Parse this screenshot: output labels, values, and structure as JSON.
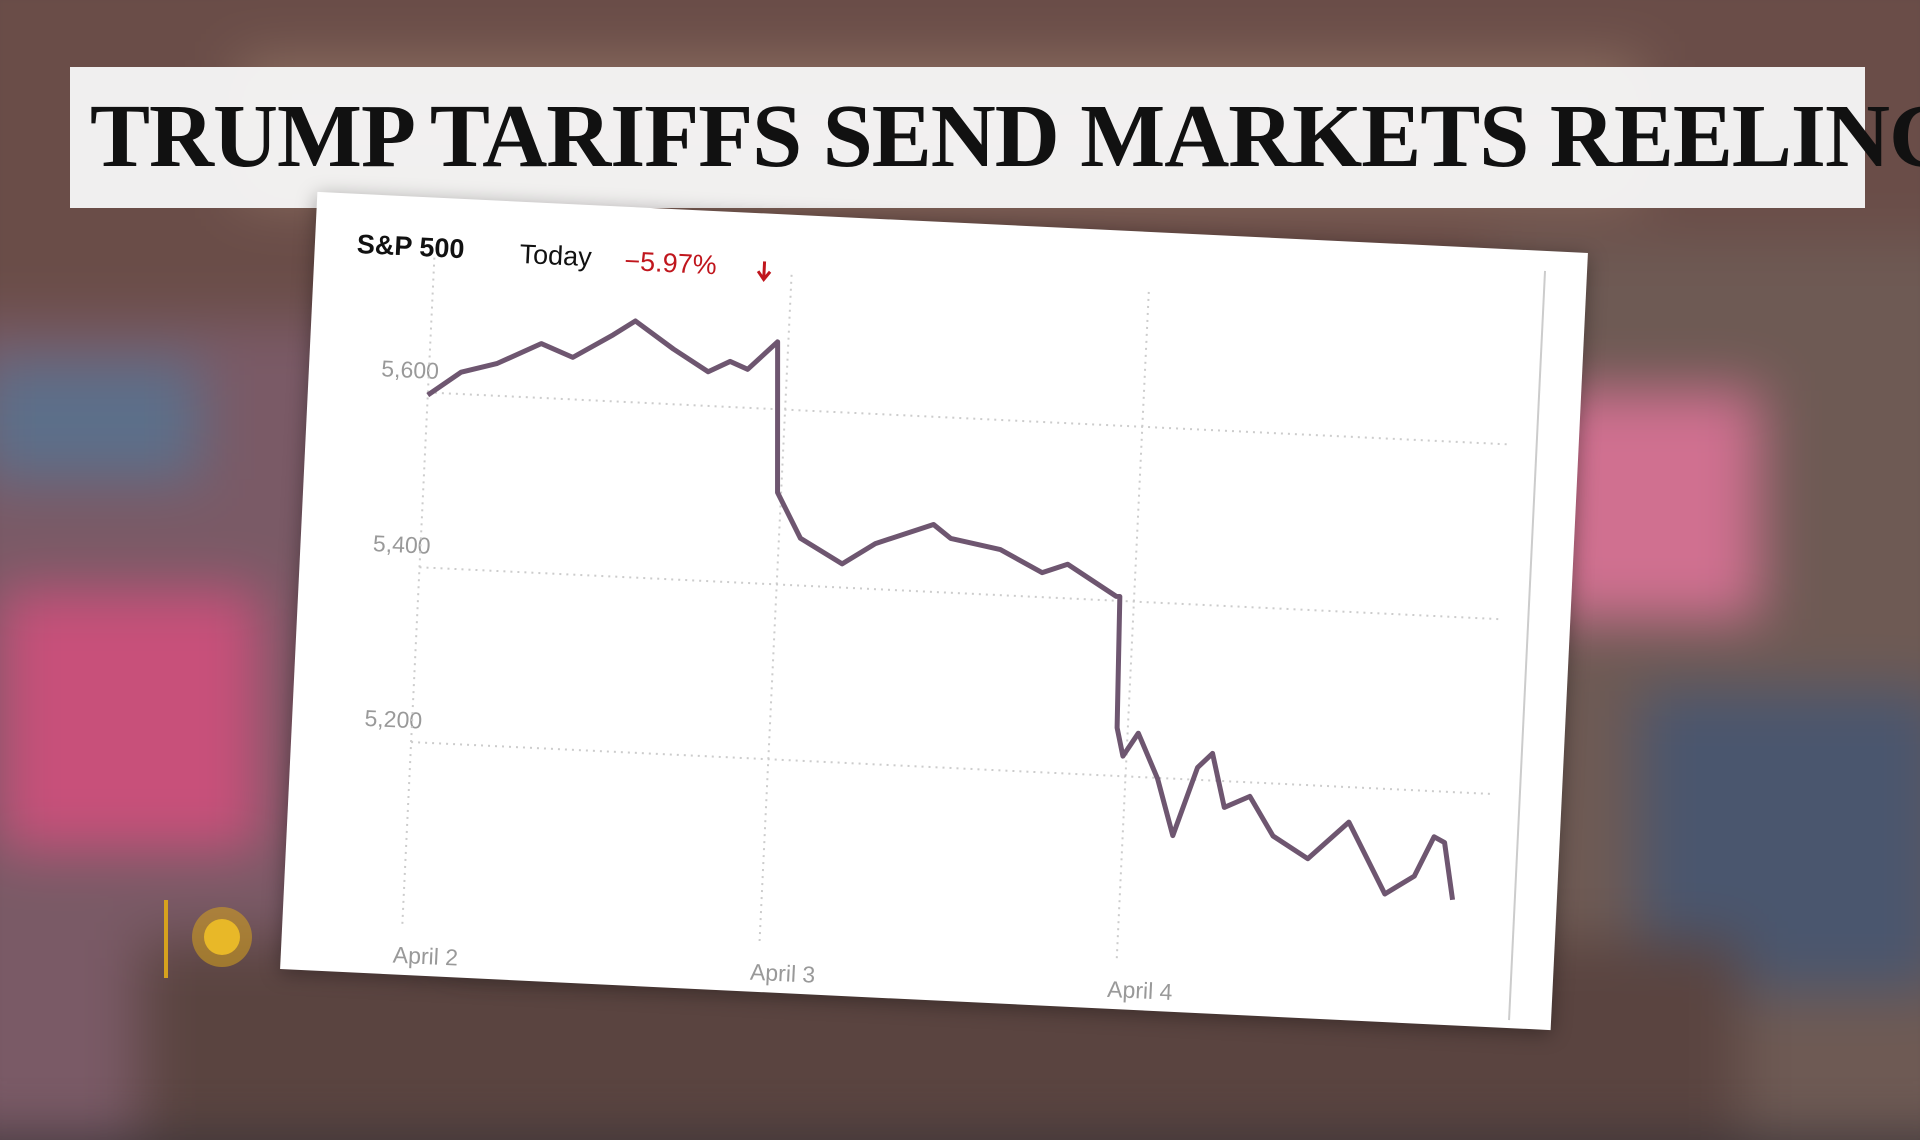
{
  "headline": "TRUMP TARIFFS SEND MARKETS REELING",
  "chart_data": {
    "type": "line",
    "title": "S&P 500",
    "subtitle": "Today",
    "change_label": "−5.97%",
    "color": "#6e5670",
    "change_color": "#c0161d",
    "x": [
      0,
      0.09,
      0.19,
      0.31,
      0.4,
      0.51,
      0.57,
      0.68,
      0.78,
      0.84,
      0.89,
      0.97,
      0.99,
      1.06,
      1.18,
      1.27,
      1.43,
      1.48,
      1.62,
      1.74,
      1.81,
      1.95,
      1.96,
      1.97,
      1.99,
      2.03,
      2.09,
      2.14,
      2.2,
      2.24,
      2.28,
      2.35,
      2.42,
      2.52,
      2.63,
      2.74,
      2.82,
      2.87,
      2.9,
      2.93
    ],
    "values": [
      5597,
      5625,
      5637,
      5662,
      5648,
      5676,
      5693,
      5663,
      5639,
      5652,
      5644,
      5677,
      5505,
      5454,
      5427,
      5452,
      5477,
      5462,
      5452,
      5428,
      5439,
      5405,
      5405,
      5255,
      5223,
      5250,
      5199,
      5135,
      5214,
      5231,
      5170,
      5184,
      5140,
      5116,
      5160,
      5080,
      5102,
      5148,
      5142,
      5077
    ],
    "xlim": [
      0,
      3.02
    ],
    "ylim": [
      5000,
      5720
    ],
    "xticks": [
      {
        "value": 0,
        "label": "April 2"
      },
      {
        "value": 1,
        "label": "April 3"
      },
      {
        "value": 2,
        "label": "April 4"
      }
    ],
    "yticks": [
      {
        "value": 5200,
        "label": "5,200"
      },
      {
        "value": 5400,
        "label": "5,400"
      },
      {
        "value": 5600,
        "label": "5,600"
      }
    ],
    "grid": true
  }
}
